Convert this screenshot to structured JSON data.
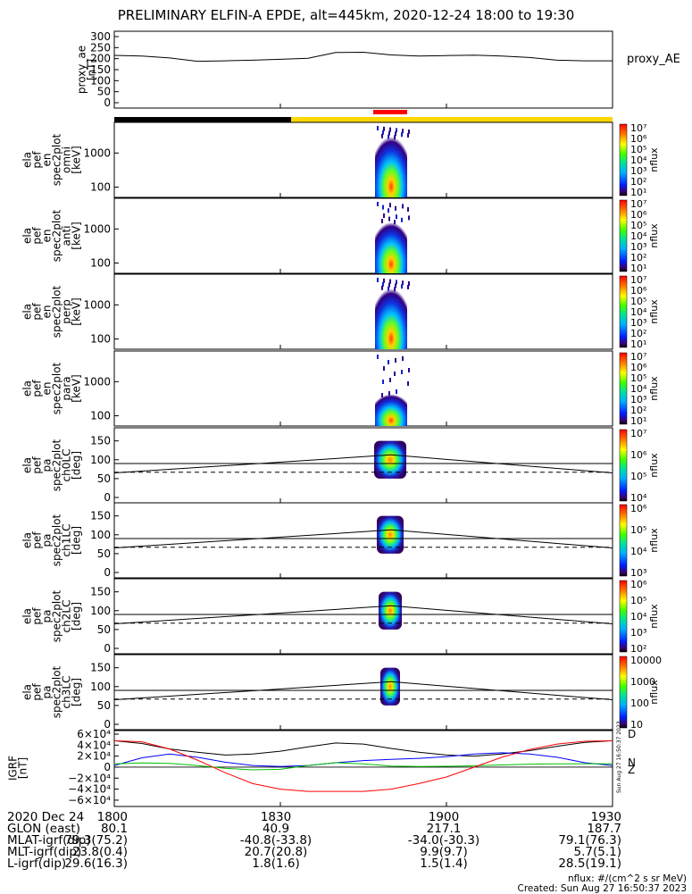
{
  "title": "PRELIMINARY ELFIN-A EPDE, alt=445km, 2020-12-24 18:00 to 19:30",
  "colors": {
    "ae_line": "#000000",
    "bar_shadow": "#000000",
    "bar_sunlit": "#ffd700",
    "science_marker": "#ff0000",
    "igrf_x": "#000000",
    "igrf_y": "#0000ff",
    "igrf_z": "#00c000",
    "igrf_mag": "#ff0000",
    "background": "#ffffff"
  },
  "panels": {
    "ae": {
      "ylabel": [
        "proxy_ae",
        "[nT]"
      ],
      "ticks": [
        "300",
        "250",
        "200",
        "150",
        "100",
        "50",
        "0"
      ],
      "legend": "proxy_AE"
    },
    "spec": [
      {
        "name": "omni",
        "ylabel": [
          "ela",
          "pef",
          "en",
          "spec2plot",
          "omni",
          "[keV]"
        ],
        "ticks": [
          "1000",
          "100"
        ],
        "cb_ticks": [
          "10⁷",
          "10⁶",
          "10⁵",
          "10⁴",
          "10³",
          "10²",
          "10¹"
        ],
        "cb_label": "nflux"
      },
      {
        "name": "anti",
        "ylabel": [
          "ela",
          "pef",
          "en",
          "spec2plot",
          "anti",
          "[keV]"
        ],
        "ticks": [
          "1000",
          "100"
        ],
        "cb_ticks": [
          "10⁷",
          "10⁶",
          "10⁵",
          "10⁴",
          "10³",
          "10²",
          "10¹"
        ],
        "cb_label": "nflux"
      },
      {
        "name": "perp",
        "ylabel": [
          "ela",
          "pef",
          "en",
          "spec2plot",
          "perp",
          "[keV]"
        ],
        "ticks": [
          "1000",
          "100"
        ],
        "cb_ticks": [
          "10⁷",
          "10⁶",
          "10⁵",
          "10⁴",
          "10³",
          "10²",
          "10¹"
        ],
        "cb_label": "nflux"
      },
      {
        "name": "para",
        "ylabel": [
          "ela",
          "pef",
          "en",
          "spec2plot",
          "para",
          "[keV]"
        ],
        "ticks": [
          "1000",
          "100"
        ],
        "cb_ticks": [
          "10⁷",
          "10⁶",
          "10⁵",
          "10⁴",
          "10³",
          "10²",
          "10¹"
        ],
        "cb_label": "nflux"
      }
    ],
    "pa": [
      {
        "name": "ch0LC",
        "ylabel": [
          "ela",
          "pef",
          "pa",
          "spec2plot",
          "ch0LC",
          "[deg]"
        ],
        "ticks": [
          "150",
          "100",
          "50",
          "0"
        ],
        "cb_ticks": [
          "10⁷",
          "10⁶",
          "10⁵",
          "10⁴"
        ],
        "cb_label": "nflux"
      },
      {
        "name": "ch1LC",
        "ylabel": [
          "ela",
          "pef",
          "pa",
          "spec2plot",
          "ch1LC",
          "[deg]"
        ],
        "ticks": [
          "150",
          "100",
          "50",
          "0"
        ],
        "cb_ticks": [
          "10⁶",
          "10⁵",
          "10⁴",
          "10³"
        ],
        "cb_label": "nflux"
      },
      {
        "name": "ch2LC",
        "ylabel": [
          "ela",
          "pef",
          "pa",
          "spec2plot",
          "ch2LC",
          "[deg]"
        ],
        "ticks": [
          "150",
          "100",
          "50",
          "0"
        ],
        "cb_ticks": [
          "10⁶",
          "10⁵",
          "10⁴",
          "10³",
          "10²"
        ],
        "cb_label": "nflux"
      },
      {
        "name": "ch3LC",
        "ylabel": [
          "ela",
          "pef",
          "pa",
          "spec2plot",
          "ch3LC",
          "[deg]"
        ],
        "ticks": [
          "150",
          "100",
          "50",
          "0"
        ],
        "cb_ticks": [
          "10000",
          "1000",
          "100",
          "10"
        ],
        "cb_label": "nflux"
      }
    ],
    "igrf": {
      "ylabel": [
        "IGRF",
        "[nT]"
      ],
      "ticks": [
        "6×10⁴",
        "4×10⁴",
        "2×10⁴",
        "0",
        "−2×10⁴",
        "−4×10⁴",
        "−6×10⁴"
      ],
      "legend": [
        "D",
        "N",
        "Z"
      ]
    }
  },
  "footer": {
    "rows": [
      {
        "label": "2020 Dec 24",
        "values": [
          "1800",
          "1830",
          "1900",
          "1930"
        ]
      },
      {
        "label": "GLON (east)",
        "values": [
          "80.1",
          "40.9",
          "217.1",
          "187.7"
        ]
      },
      {
        "label": "MLAT-igrf(dip)",
        "values": [
          "79.3(75.2)",
          "-40.8(-33.8)",
          "-34.0(-30.3)",
          "79.1(76.3)"
        ]
      },
      {
        "label": "MLT-igrf(dip)",
        "values": [
          "23.8(0.4)",
          "20.7(20.8)",
          "9.9(9.7)",
          "5.7(5.1)"
        ]
      },
      {
        "label": "L-igrf(dip)",
        "values": [
          "29.6(16.3)",
          "1.8(1.6)",
          "1.5(1.4)",
          "28.5(19.1)"
        ]
      }
    ]
  },
  "credits": {
    "units": "nflux: #/(cm^2 s sr MeV)",
    "created": "Created: Sun Aug 27 16:50:37 2023",
    "side_stamp": "Sun Aug 27 16:50:37 2023"
  },
  "chart_data": [
    {
      "type": "line",
      "name": "proxy_AE",
      "x_unit": "UT (HHMM)",
      "xlim": [
        1800,
        1930
      ],
      "ylim": [
        0,
        300
      ],
      "x": [
        1800,
        1805,
        1810,
        1815,
        1820,
        1825,
        1830,
        1835,
        1840,
        1845,
        1850,
        1855,
        1900,
        1905,
        1910,
        1915,
        1920,
        1925,
        1930
      ],
      "values": [
        215,
        212,
        203,
        188,
        190,
        193,
        197,
        202,
        228,
        229,
        217,
        212,
        214,
        216,
        212,
        205,
        193,
        190,
        190
      ]
    },
    {
      "type": "line",
      "name": "IGRF",
      "xlim": [
        1800,
        1930
      ],
      "ylim": [
        -65000,
        60000
      ],
      "x": [
        1800,
        1805,
        1810,
        1815,
        1820,
        1825,
        1830,
        1835,
        1840,
        1845,
        1850,
        1855,
        1900,
        1905,
        1910,
        1915,
        1920,
        1925,
        1930
      ],
      "series": [
        {
          "name": "D",
          "values": [
            48000,
            43000,
            33000,
            27000,
            22000,
            24000,
            29000,
            37000,
            44000,
            42000,
            34000,
            27000,
            22000,
            20000,
            24000,
            30000,
            38000,
            45000,
            48000
          ]
        },
        {
          "name": "N",
          "values": [
            3000,
            17000,
            24000,
            18000,
            9000,
            3000,
            1000,
            3000,
            8000,
            12000,
            14000,
            16000,
            19000,
            24000,
            26000,
            24000,
            18000,
            8000,
            3000
          ]
        },
        {
          "name": "Z",
          "values": [
            6000,
            7500,
            6800,
            3000,
            -2000,
            -5000,
            -4000,
            3000,
            8000,
            6000,
            2000,
            1000,
            1500,
            2500,
            4000,
            5500,
            6000,
            6200,
            6000
          ]
        },
        {
          "name": "",
          "values": [
            48000,
            46000,
            33000,
            13000,
            -10000,
            -30000,
            -40000,
            -44000,
            -44000,
            -44000,
            -40000,
            -30000,
            -18000,
            0,
            18000,
            32000,
            42000,
            47000,
            48000
          ]
        }
      ]
    }
  ]
}
